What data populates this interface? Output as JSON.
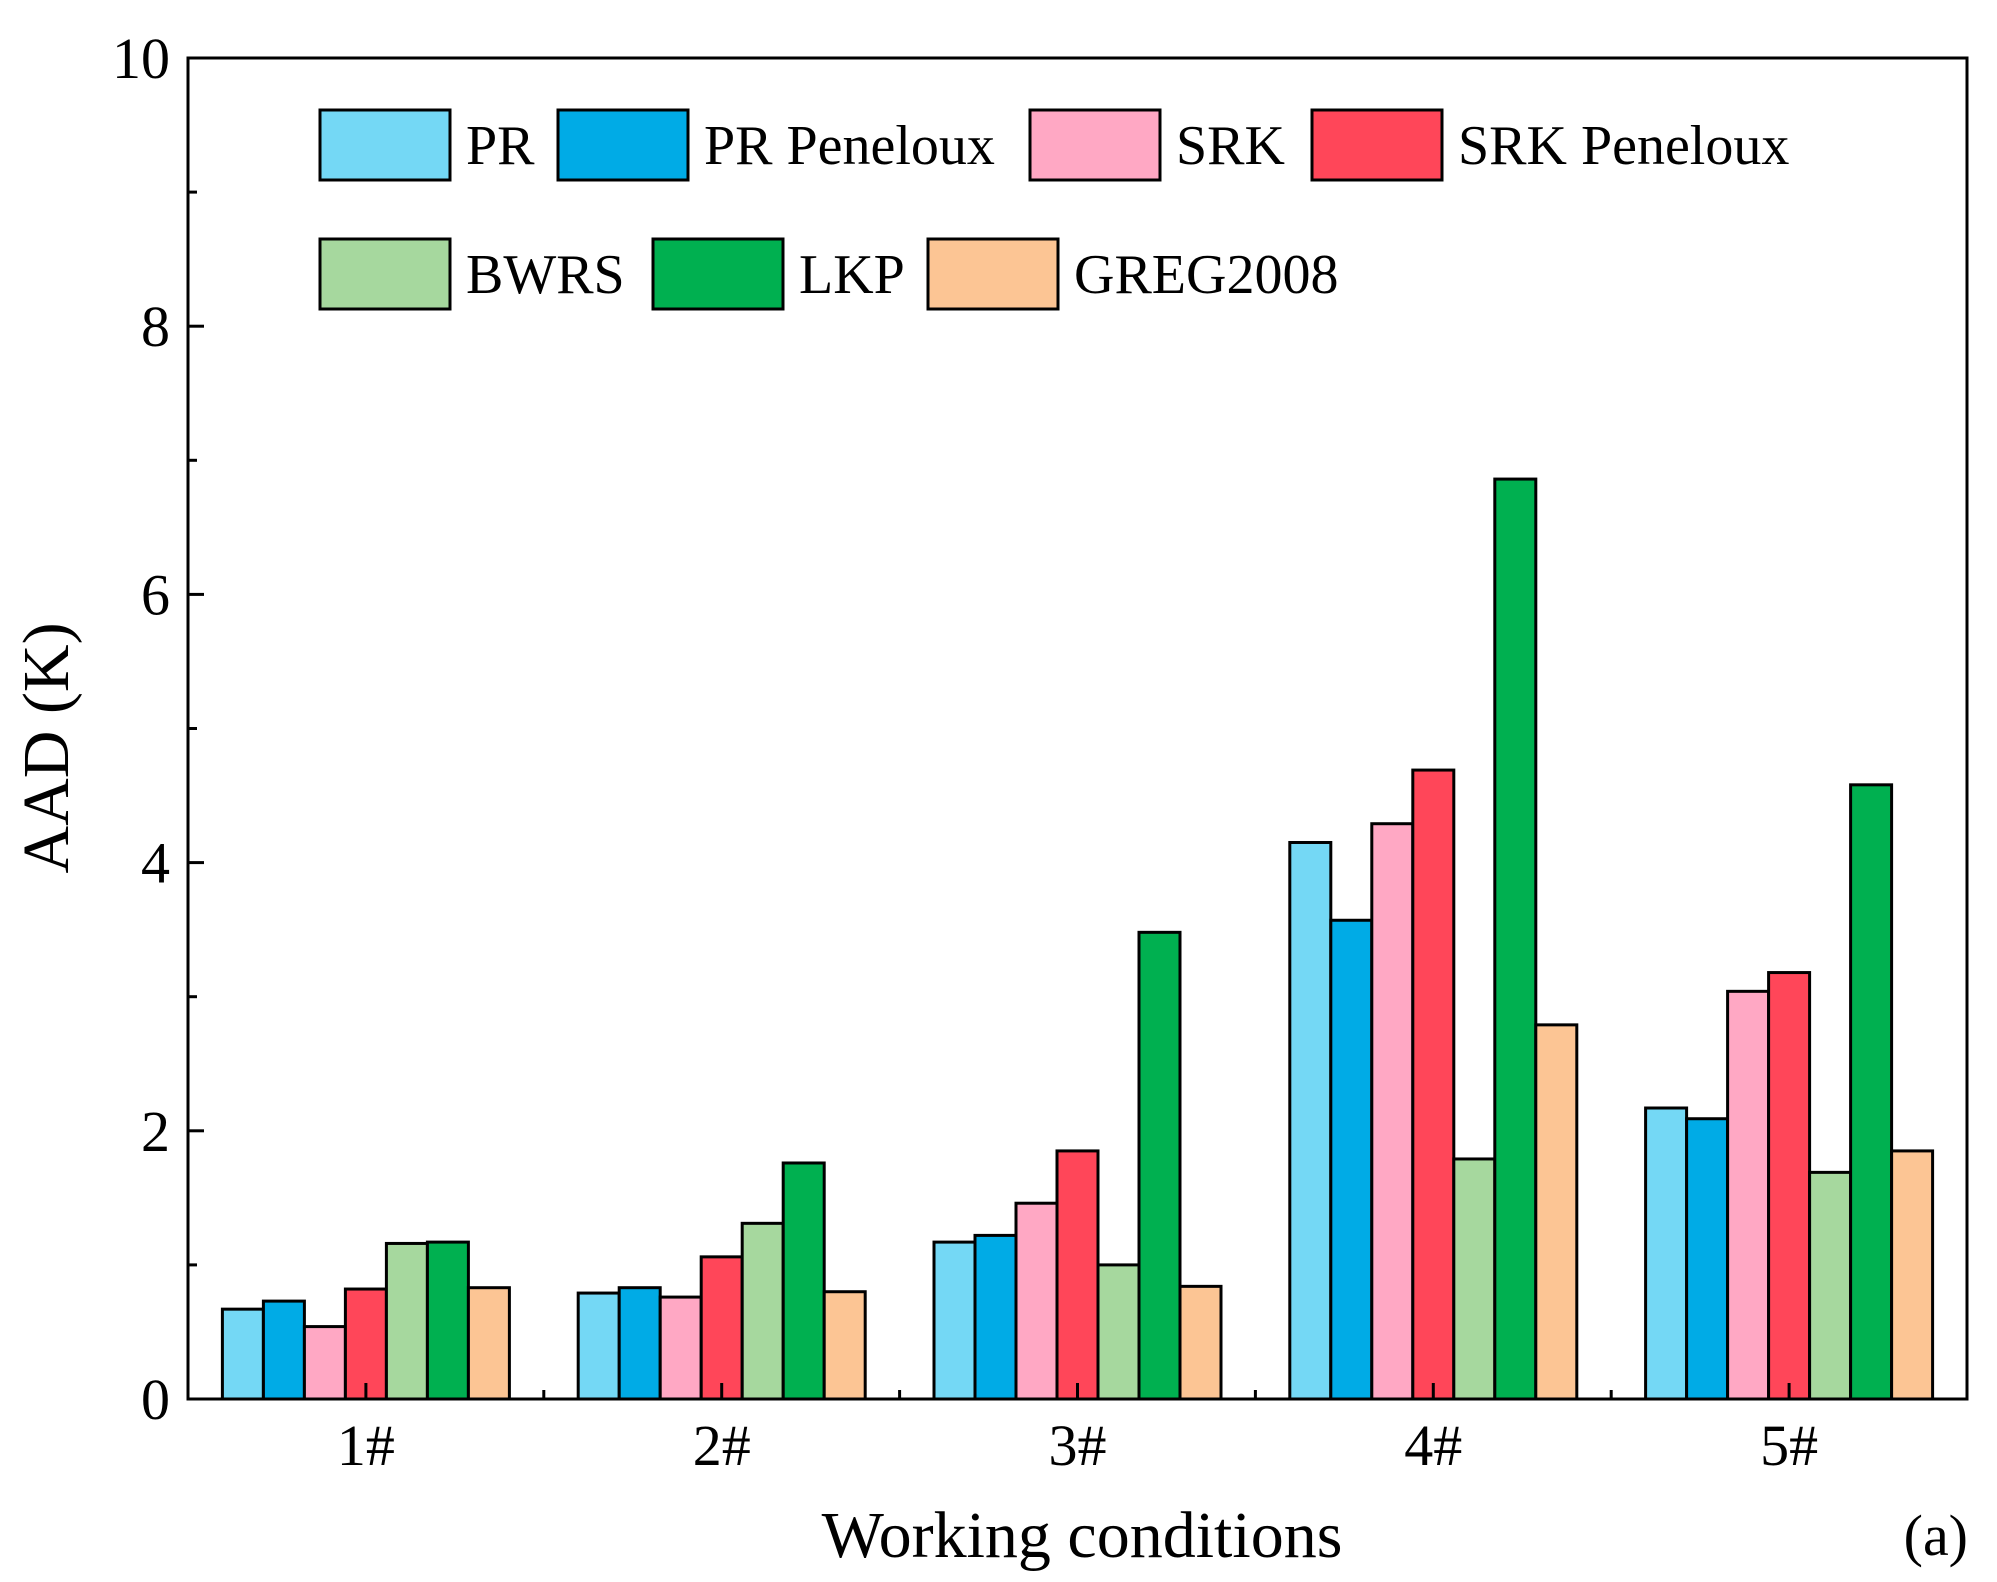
{
  "chart_data": {
    "type": "bar",
    "title": "",
    "xlabel": "Working conditions",
    "ylabel": "AAD (K)",
    "panel_label": "(a)",
    "ylim": [
      0,
      10
    ],
    "yticks": [
      "0",
      "2",
      "4",
      "6",
      "8",
      "10"
    ],
    "categories": [
      "1#",
      "2#",
      "3#",
      "4#",
      "5#"
    ],
    "series": [
      {
        "name": "PR",
        "color": "#74D8F5",
        "values": [
          0.67,
          0.79,
          1.17,
          4.15,
          2.17
        ]
      },
      {
        "name": "PR Peneloux",
        "color": "#00ABE6",
        "values": [
          0.73,
          0.83,
          1.22,
          3.57,
          2.09
        ]
      },
      {
        "name": "SRK",
        "color": "#FFA8C4",
        "values": [
          0.54,
          0.76,
          1.46,
          4.29,
          3.04
        ]
      },
      {
        "name": "SRK Peneloux",
        "color": "#FF4659",
        "values": [
          0.82,
          1.06,
          1.85,
          4.69,
          3.18
        ]
      },
      {
        "name": "BWRS",
        "color": "#A6D89E",
        "values": [
          1.16,
          1.31,
          1.0,
          1.79,
          1.69
        ]
      },
      {
        "name": "LKP",
        "color": "#00B050",
        "values": [
          1.17,
          1.76,
          3.48,
          6.86,
          4.58
        ]
      },
      {
        "name": "GREG2008",
        "color": "#FCC594",
        "values": [
          0.83,
          0.8,
          0.84,
          2.79,
          1.85
        ]
      }
    ],
    "legend_position": "top-left",
    "grid": false
  }
}
